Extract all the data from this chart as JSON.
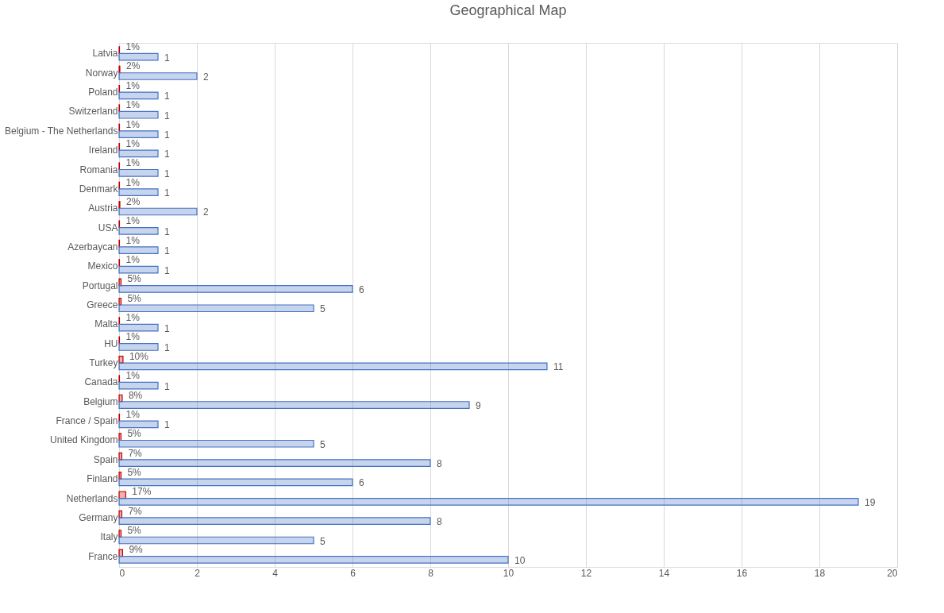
{
  "chart_data": {
    "type": "bar",
    "orientation": "horizontal",
    "title": "Geographical Map",
    "categories": [
      "Latvia",
      "Norway",
      "Poland",
      "Switzerland",
      "Belgium - The Netherlands",
      "Ireland",
      "Romania",
      "Denmark",
      "Austria",
      "USA",
      "Azerbaycan",
      "Mexico",
      "Portugal",
      "Greece",
      "Malta",
      "HU",
      "Turkey",
      "Canada",
      "Belgium",
      "France / Spain",
      "United Kingdom",
      "Spain",
      "Finland",
      "Netherlands",
      "Germany",
      "Italy",
      "France"
    ],
    "series": [
      {
        "color": "#c00000",
        "values": [
          0.01,
          0.02,
          0.01,
          0.01,
          0.01,
          0.01,
          0.01,
          0.01,
          0.02,
          0.01,
          0.01,
          0.01,
          0.05,
          0.05,
          0.01,
          0.01,
          0.1,
          0.01,
          0.08,
          0.01,
          0.05,
          0.07,
          0.05,
          0.17,
          0.07,
          0.05,
          0.09
        ],
        "value_labels": [
          "1%",
          "2%",
          "1%",
          "1%",
          "1%",
          "1%",
          "1%",
          "1%",
          "2%",
          "1%",
          "1%",
          "1%",
          "5%",
          "5%",
          "1%",
          "1%",
          "10%",
          "1%",
          "8%",
          "1%",
          "5%",
          "7%",
          "5%",
          "17%",
          "7%",
          "5%",
          "9%"
        ]
      },
      {
        "color": "#4472c4",
        "values": [
          1,
          2,
          1,
          1,
          1,
          1,
          1,
          1,
          2,
          1,
          1,
          1,
          6,
          5,
          1,
          1,
          11,
          1,
          9,
          1,
          5,
          8,
          6,
          19,
          8,
          5,
          10
        ],
        "value_labels": [
          "1",
          "2",
          "1",
          "1",
          "1",
          "1",
          "1",
          "1",
          "2",
          "1",
          "1",
          "1",
          "6",
          "5",
          "1",
          "1",
          "11",
          "1",
          "9",
          "1",
          "5",
          "8",
          "6",
          "19",
          "8",
          "5",
          "10"
        ]
      }
    ],
    "xlim": [
      0,
      20
    ],
    "xticks": [
      0,
      2,
      4,
      6,
      8,
      10,
      12,
      14,
      16,
      18,
      20
    ],
    "grid": "x"
  }
}
